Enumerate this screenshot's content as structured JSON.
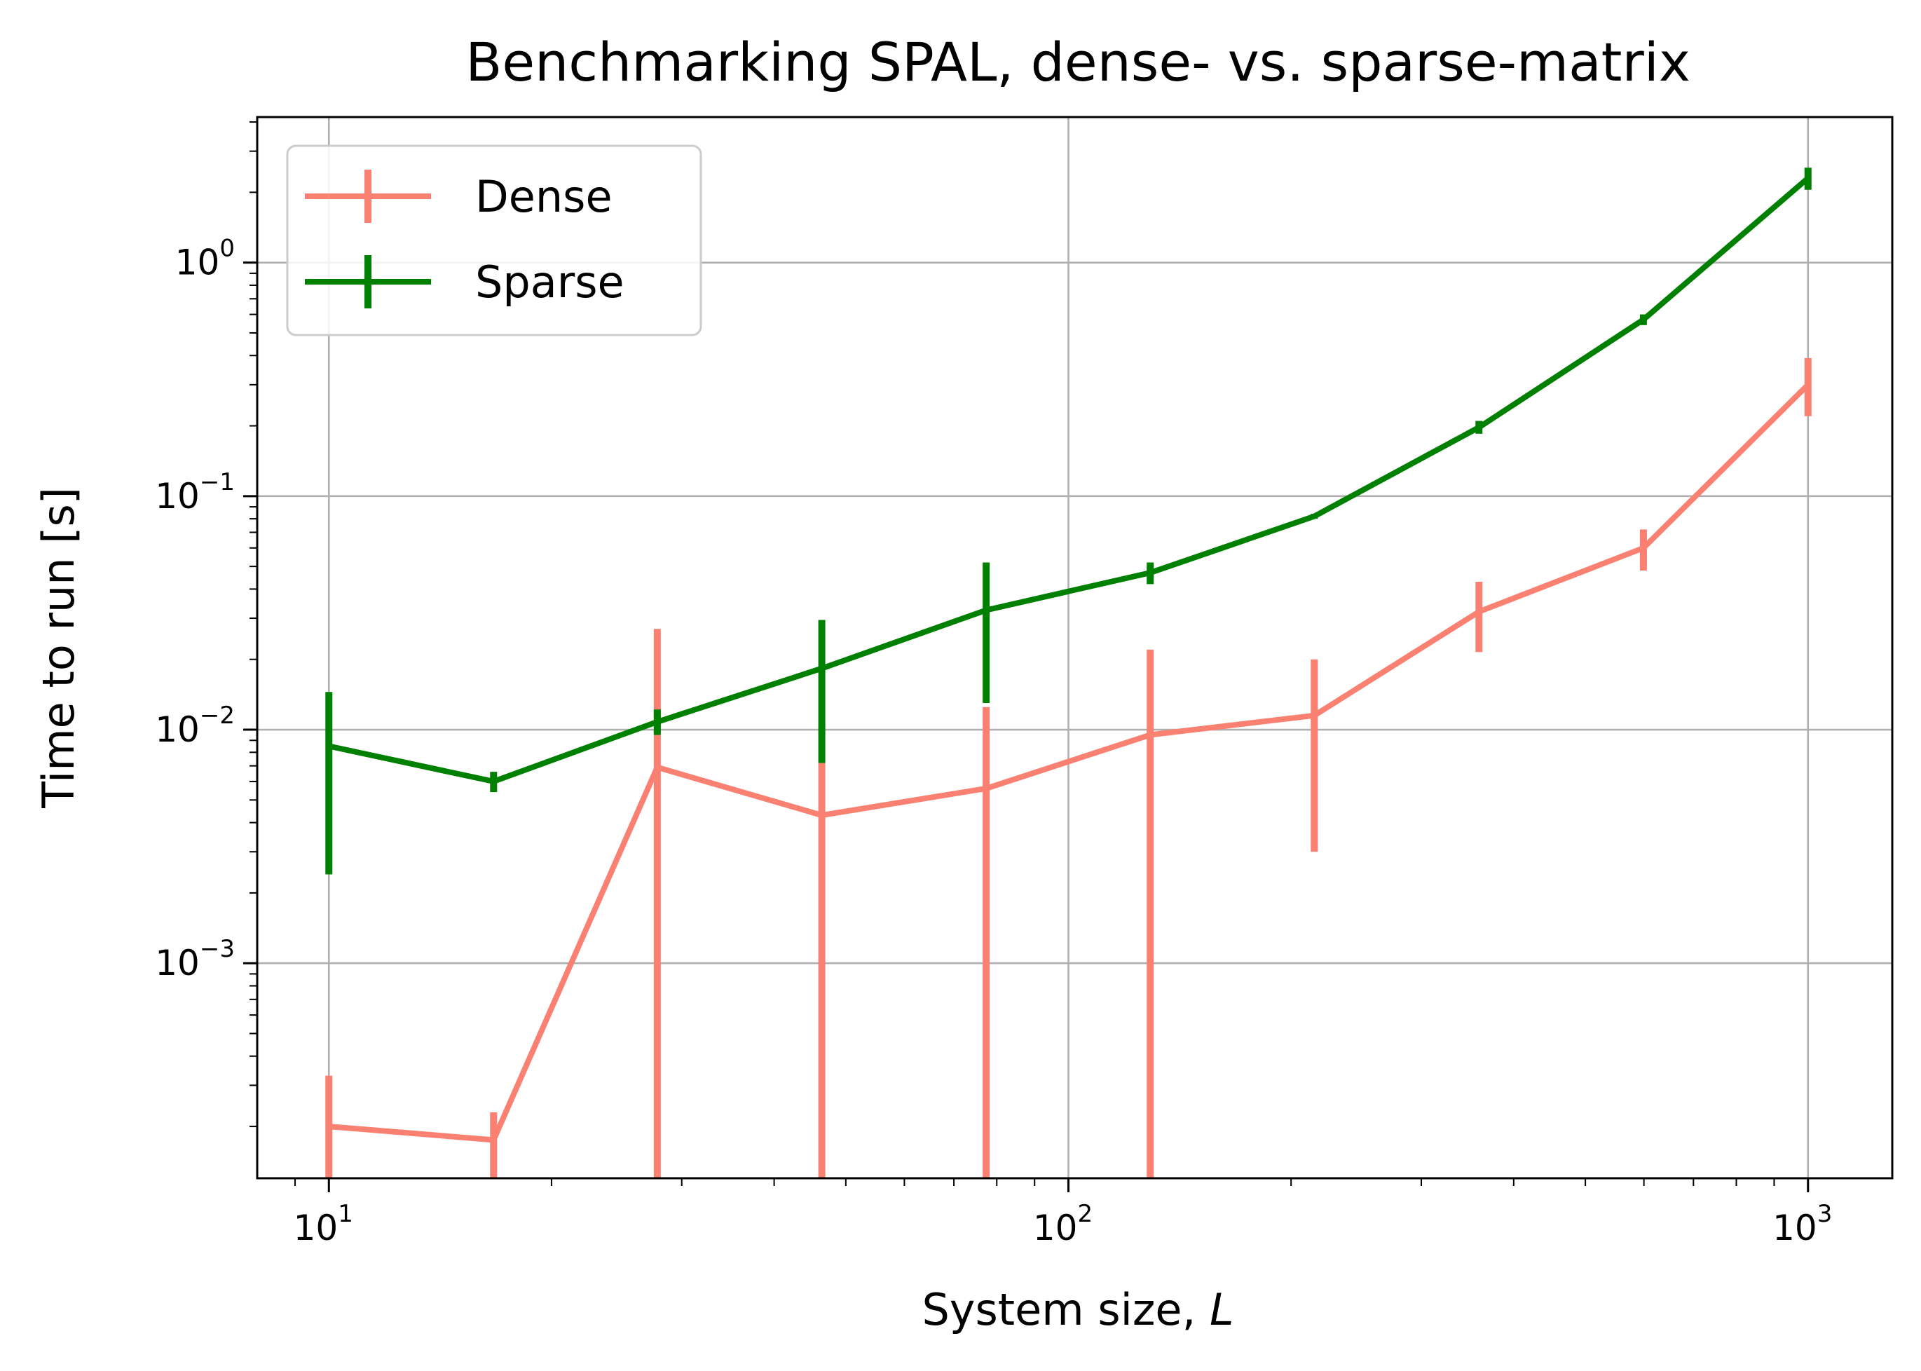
{
  "chart_data": {
    "type": "line",
    "title": "Benchmarking SPAL, dense- vs. sparse-matrix",
    "xlabel": "System size, ",
    "xlabel_var": "L",
    "ylabel": "Time to run [s]",
    "xscale": "log",
    "yscale": "log",
    "xlim": [
      8.0,
      1300.0
    ],
    "ylim": [
      0.00012,
      4.2
    ],
    "grid": true,
    "legend_position": "upper-left",
    "x_ticks": [
      {
        "value": 10,
        "base": "10",
        "exp": "1"
      },
      {
        "value": 100,
        "base": "10",
        "exp": "2"
      },
      {
        "value": 1000,
        "base": "10",
        "exp": "3"
      }
    ],
    "y_ticks": [
      {
        "value": 0.001,
        "base": "10",
        "exp": "−3"
      },
      {
        "value": 0.01,
        "base": "10",
        "exp": "−2"
      },
      {
        "value": 0.1,
        "base": "10",
        "exp": "−1"
      },
      {
        "value": 1,
        "base": "10",
        "exp": "0"
      }
    ],
    "series": [
      {
        "name": "Dense",
        "color": "#fa8072",
        "x": [
          10,
          16.7,
          27.8,
          46.4,
          77.4,
          129,
          215,
          359,
          599,
          1000
        ],
        "y": [
          0.0002,
          0.000175,
          0.0069,
          0.0043,
          0.0056,
          0.0095,
          0.0115,
          0.032,
          0.06,
          0.3
        ],
        "err_low": [
          0.00012,
          0.00012,
          0.00012,
          0.00012,
          0.00012,
          0.00012,
          0.003,
          0.0215,
          0.048,
          0.22
        ],
        "err_high": [
          0.00033,
          0.00023,
          0.027,
          0.0072,
          0.0125,
          0.022,
          0.02,
          0.043,
          0.072,
          0.39
        ]
      },
      {
        "name": "Sparse",
        "color": "#008000",
        "x": [
          10,
          16.7,
          27.8,
          46.4,
          77.4,
          129,
          215,
          359,
          599,
          1000
        ],
        "y": [
          0.0085,
          0.006,
          0.0108,
          0.0183,
          0.0325,
          0.047,
          0.082,
          0.197,
          0.57,
          2.3
        ],
        "err_low": [
          0.0024,
          0.0054,
          0.0095,
          0.0072,
          0.013,
          0.042,
          0.08,
          0.185,
          0.54,
          2.05
        ],
        "err_high": [
          0.0145,
          0.0066,
          0.0122,
          0.0295,
          0.052,
          0.052,
          0.084,
          0.21,
          0.6,
          2.55
        ]
      }
    ]
  }
}
